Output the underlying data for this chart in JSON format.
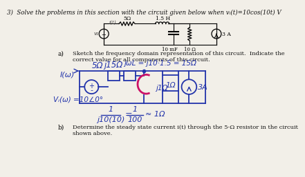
{
  "bg_color": "#f2efe8",
  "title": "3)  Solve the problems in this section with the circuit given below when vᵢ(t)=10cos(10t) V",
  "part_a_text": "Sketch the frequency domain representation of this circuit.  Indicate the\ncorrect value for all components of this circuit.",
  "part_b_text": "Determine the steady state current i(t) through the 5-Ω resistor in the circuit\nshown above.",
  "hw_color": "#2233aa",
  "cap_color": "#cc1166",
  "ink_color": "#333355"
}
